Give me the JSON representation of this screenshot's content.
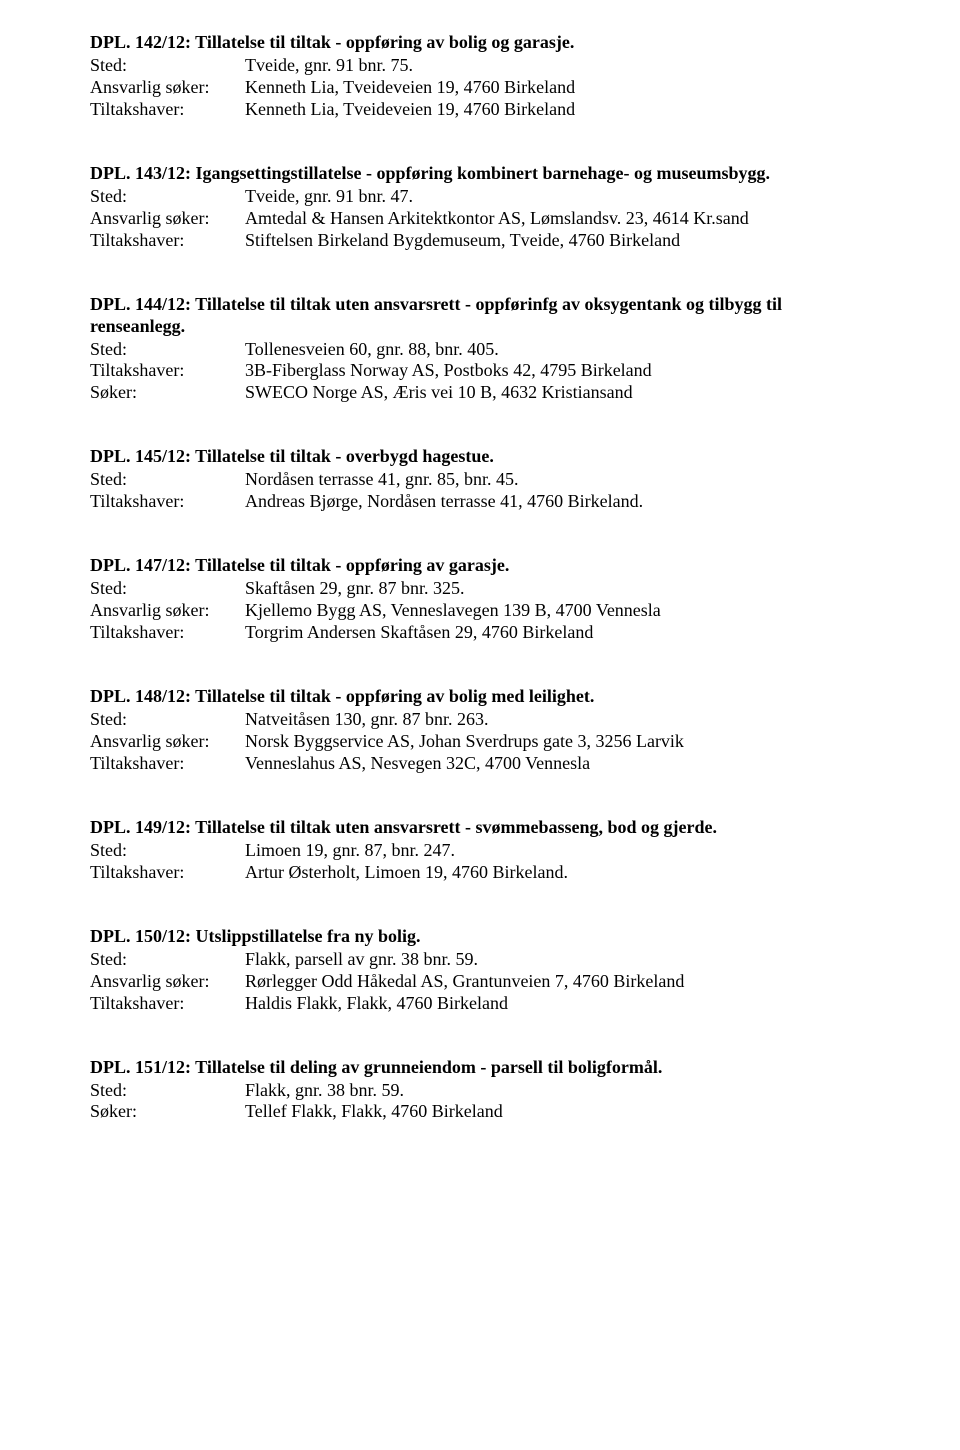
{
  "entries": [
    {
      "title": "DPL. 142/12: Tillatelse til tiltak - oppføring av bolig og garasje.",
      "rows": [
        {
          "label": "Sted:",
          "value": "Tveide, gnr. 91 bnr. 75."
        },
        {
          "label": "Ansvarlig søker:",
          "value": "Kenneth Lia, Tveideveien 19, 4760 Birkeland"
        },
        {
          "label": "Tiltakshaver:",
          "value": "Kenneth Lia, Tveideveien 19, 4760 Birkeland"
        }
      ]
    },
    {
      "title": "DPL. 143/12: Igangsettingstillatelse - oppføring kombinert barnehage- og museumsbygg.",
      "rows": [
        {
          "label": "Sted:",
          "value": "Tveide, gnr. 91 bnr. 47."
        },
        {
          "label": "Ansvarlig søker:",
          "value": "Amtedal & Hansen Arkitektkontor AS, Lømslandsv. 23, 4614 Kr.sand"
        },
        {
          "label": "Tiltakshaver:",
          "value": "Stiftelsen Birkeland Bygdemuseum, Tveide, 4760 Birkeland"
        }
      ]
    },
    {
      "title": "DPL. 144/12: Tillatelse til tiltak uten ansvarsrett - oppførinfg av oksygentank og tilbygg til renseanlegg.",
      "rows": [
        {
          "label": "Sted:",
          "value": "Tollenesveien 60, gnr. 88, bnr. 405."
        },
        {
          "label": "Tiltakshaver:",
          "value": "3B-Fiberglass Norway AS, Postboks 42, 4795 Birkeland"
        },
        {
          "label": "Søker:",
          "value": "SWECO Norge AS, Æris vei 10 B, 4632 Kristiansand"
        }
      ]
    },
    {
      "title": "DPL. 145/12: Tillatelse  til tiltak - overbygd hagestue.",
      "rows": [
        {
          "label": "Sted:",
          "value": "Nordåsen terrasse 41, gnr. 85, bnr. 45."
        },
        {
          "label": "Tiltakshaver:",
          "value": "Andreas Bjørge, Nordåsen terrasse 41, 4760 Birkeland."
        }
      ]
    },
    {
      "title": "DPL. 147/12: Tillatelse til tiltak - oppføring av garasje.",
      "rows": [
        {
          "label": "Sted:",
          "value": "Skaftåsen 29, gnr. 87 bnr. 325."
        },
        {
          "label": "Ansvarlig søker:",
          "value": "Kjellemo Bygg AS, Venneslavegen 139 B, 4700 Vennesla"
        },
        {
          "label": "Tiltakshaver:",
          "value": "Torgrim Andersen Skaftåsen 29, 4760 Birkeland"
        }
      ]
    },
    {
      "title": "DPL. 148/12: Tillatelse til tiltak - oppføring av bolig med leilighet.",
      "rows": [
        {
          "label": "Sted:",
          "value": "Natveitåsen 130, gnr. 87 bnr. 263."
        },
        {
          "label": "Ansvarlig søker:",
          "value": "Norsk Byggservice AS, Johan Sverdrups gate 3, 3256 Larvik"
        },
        {
          "label": "Tiltakshaver:",
          "value": "Venneslahus AS, Nesvegen 32C, 4700 Vennesla"
        }
      ]
    },
    {
      "title": "DPL. 149/12: Tillatelse til tiltak uten ansvarsrett - svømmebasseng, bod og gjerde.",
      "rows": [
        {
          "label": "Sted:",
          "value": "Limoen 19, gnr. 87, bnr. 247."
        },
        {
          "label": "Tiltakshaver:",
          "value": "Artur Østerholt, Limoen 19, 4760 Birkeland."
        }
      ]
    },
    {
      "title": "DPL. 150/12: Utslippstillatelse fra ny bolig.",
      "rows": [
        {
          "label": "Sted:",
          "value": "Flakk, parsell av gnr. 38 bnr. 59."
        },
        {
          "label": "Ansvarlig søker:",
          "value": "Rørlegger Odd Håkedal AS, Grantunveien 7, 4760 Birkeland"
        },
        {
          "label": "Tiltakshaver:",
          "value": "Haldis Flakk, Flakk, 4760 Birkeland"
        }
      ]
    },
    {
      "title": "DPL. 151/12: Tillatelse til deling av grunneiendom - parsell til boligformål.",
      "rows": [
        {
          "label": "Sted:",
          "value": "Flakk, gnr. 38 bnr. 59."
        },
        {
          "label": "Søker:",
          "value": "Tellef Flakk, Flakk, 4760 Birkeland"
        }
      ]
    }
  ]
}
